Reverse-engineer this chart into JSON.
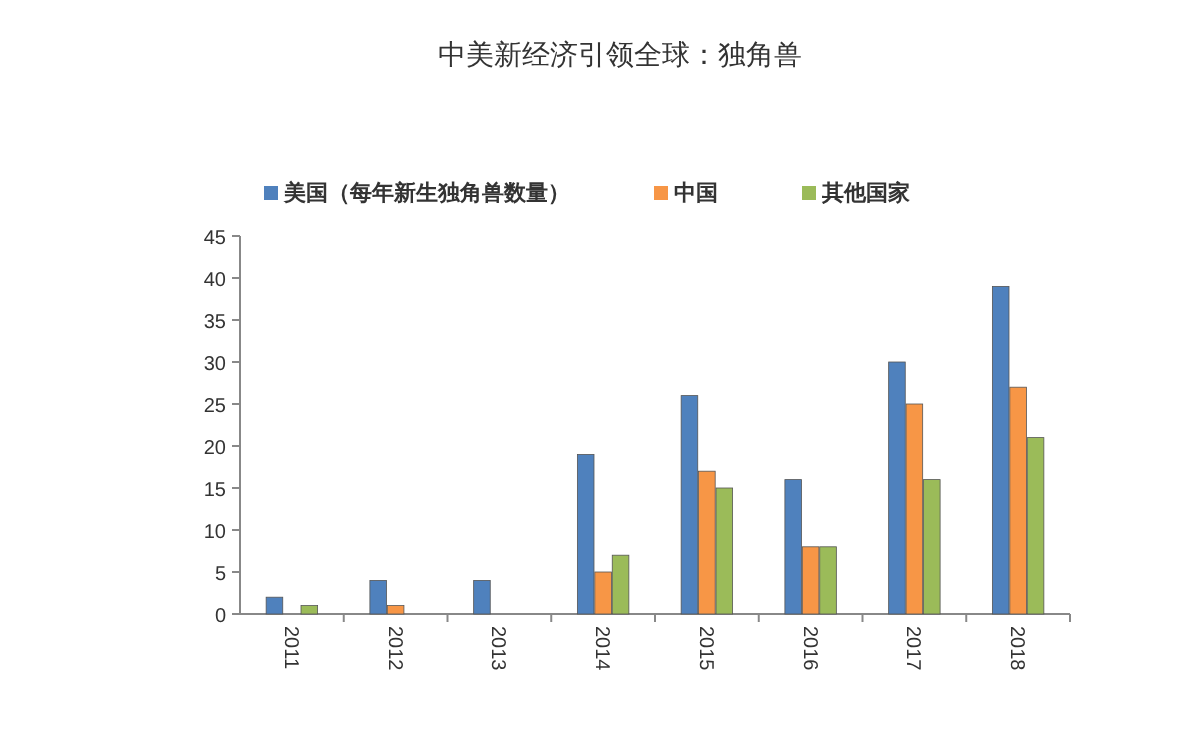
{
  "chart_data": {
    "type": "bar",
    "title": "中美新经济引领全球：独角兽",
    "categories": [
      "2011",
      "2012",
      "2013",
      "2014",
      "2015",
      "2016",
      "2017",
      "2018"
    ],
    "series": [
      {
        "name": "美国（每年新生独角兽数量）",
        "color": "#4f81bd",
        "values": [
          2,
          4,
          4,
          19,
          26,
          16,
          30,
          39
        ]
      },
      {
        "name": "中国",
        "color": "#f79646",
        "values": [
          0,
          1,
          0,
          5,
          17,
          8,
          25,
          27
        ]
      },
      {
        "name": "其他国家",
        "color": "#9bbb59",
        "values": [
          1,
          0,
          0,
          7,
          15,
          8,
          16,
          21
        ]
      }
    ],
    "ylim": [
      0,
      45
    ],
    "yticks": [
      0,
      5,
      10,
      15,
      20,
      25,
      30,
      35,
      40,
      45
    ],
    "legend": "top"
  }
}
